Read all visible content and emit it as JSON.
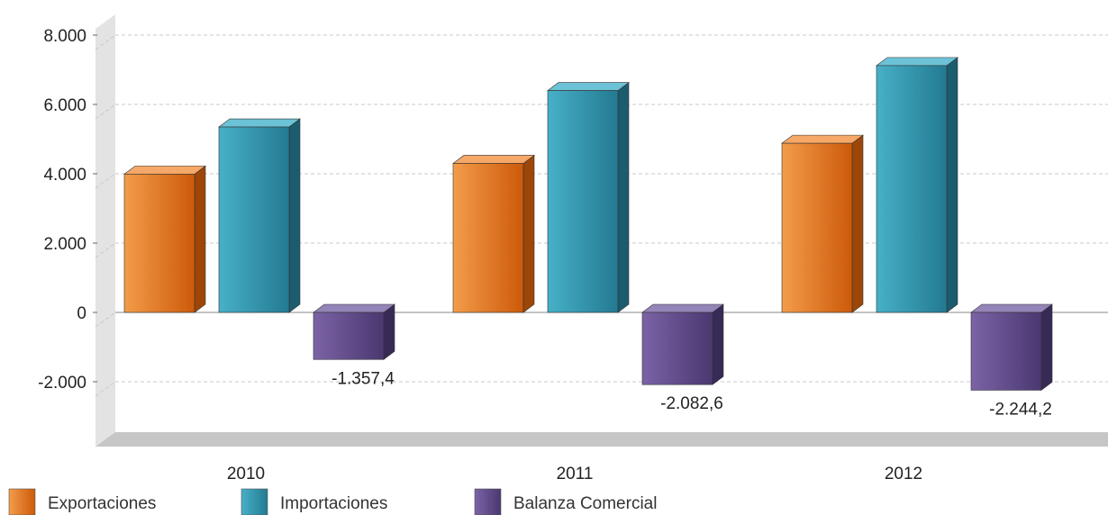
{
  "chart_data": {
    "type": "bar",
    "categories": [
      "2010",
      "2011",
      "2012"
    ],
    "series": [
      {
        "name": "Exportaciones",
        "values": [
          3990,
          4300,
          4880
        ],
        "color": "#e87722"
      },
      {
        "name": "Importaciones",
        "values": [
          5350,
          6400,
          7120
        ],
        "color": "#2f95ad"
      },
      {
        "name": "Balanza Comercial",
        "values": [
          -1357.4,
          -2082.6,
          -2244.2
        ],
        "color": "#5e4a86"
      }
    ],
    "data_labels": {
      "Balanza Comercial": [
        "-1.357,4",
        "-2.082,6",
        "-2.244,2"
      ]
    },
    "y_ticks": [
      {
        "value": 8000,
        "label": "8.000"
      },
      {
        "value": 6000,
        "label": "6.000"
      },
      {
        "value": 4000,
        "label": "4.000"
      },
      {
        "value": 2000,
        "label": "2.000"
      },
      {
        "value": 0,
        "label": "0"
      },
      {
        "value": -2000,
        "label": "-2.000"
      }
    ],
    "ylim": [
      -3800,
      9000
    ],
    "grid": true,
    "legend": "bottom-left",
    "title": "",
    "xlabel": "",
    "ylabel": ""
  }
}
